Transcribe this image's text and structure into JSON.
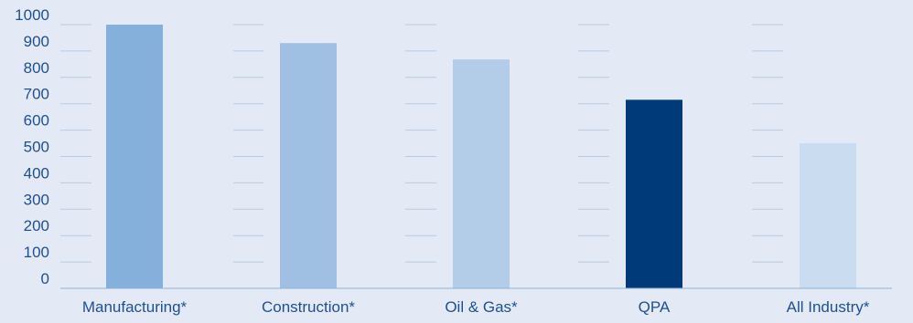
{
  "chart_data": {
    "type": "bar",
    "title": "",
    "xlabel": "",
    "ylabel": "",
    "categories": [
      "Manufacturing*",
      "Construction*",
      "Oil & Gas*",
      "QPA",
      "All Industry*"
    ],
    "values": [
      1000,
      930,
      868,
      715,
      550
    ],
    "ylim": [
      0,
      1000
    ],
    "yticks": [
      "0",
      "100",
      "200",
      "300",
      "400",
      "500",
      "600",
      "700",
      "800",
      "900",
      "1000"
    ],
    "grid": true,
    "legend": "none",
    "colors": [
      "#85b0dc",
      "#9fc0e2",
      "#b3cde8",
      "#003a78",
      "#c9dcf0"
    ],
    "background": "#e3eaf6"
  }
}
